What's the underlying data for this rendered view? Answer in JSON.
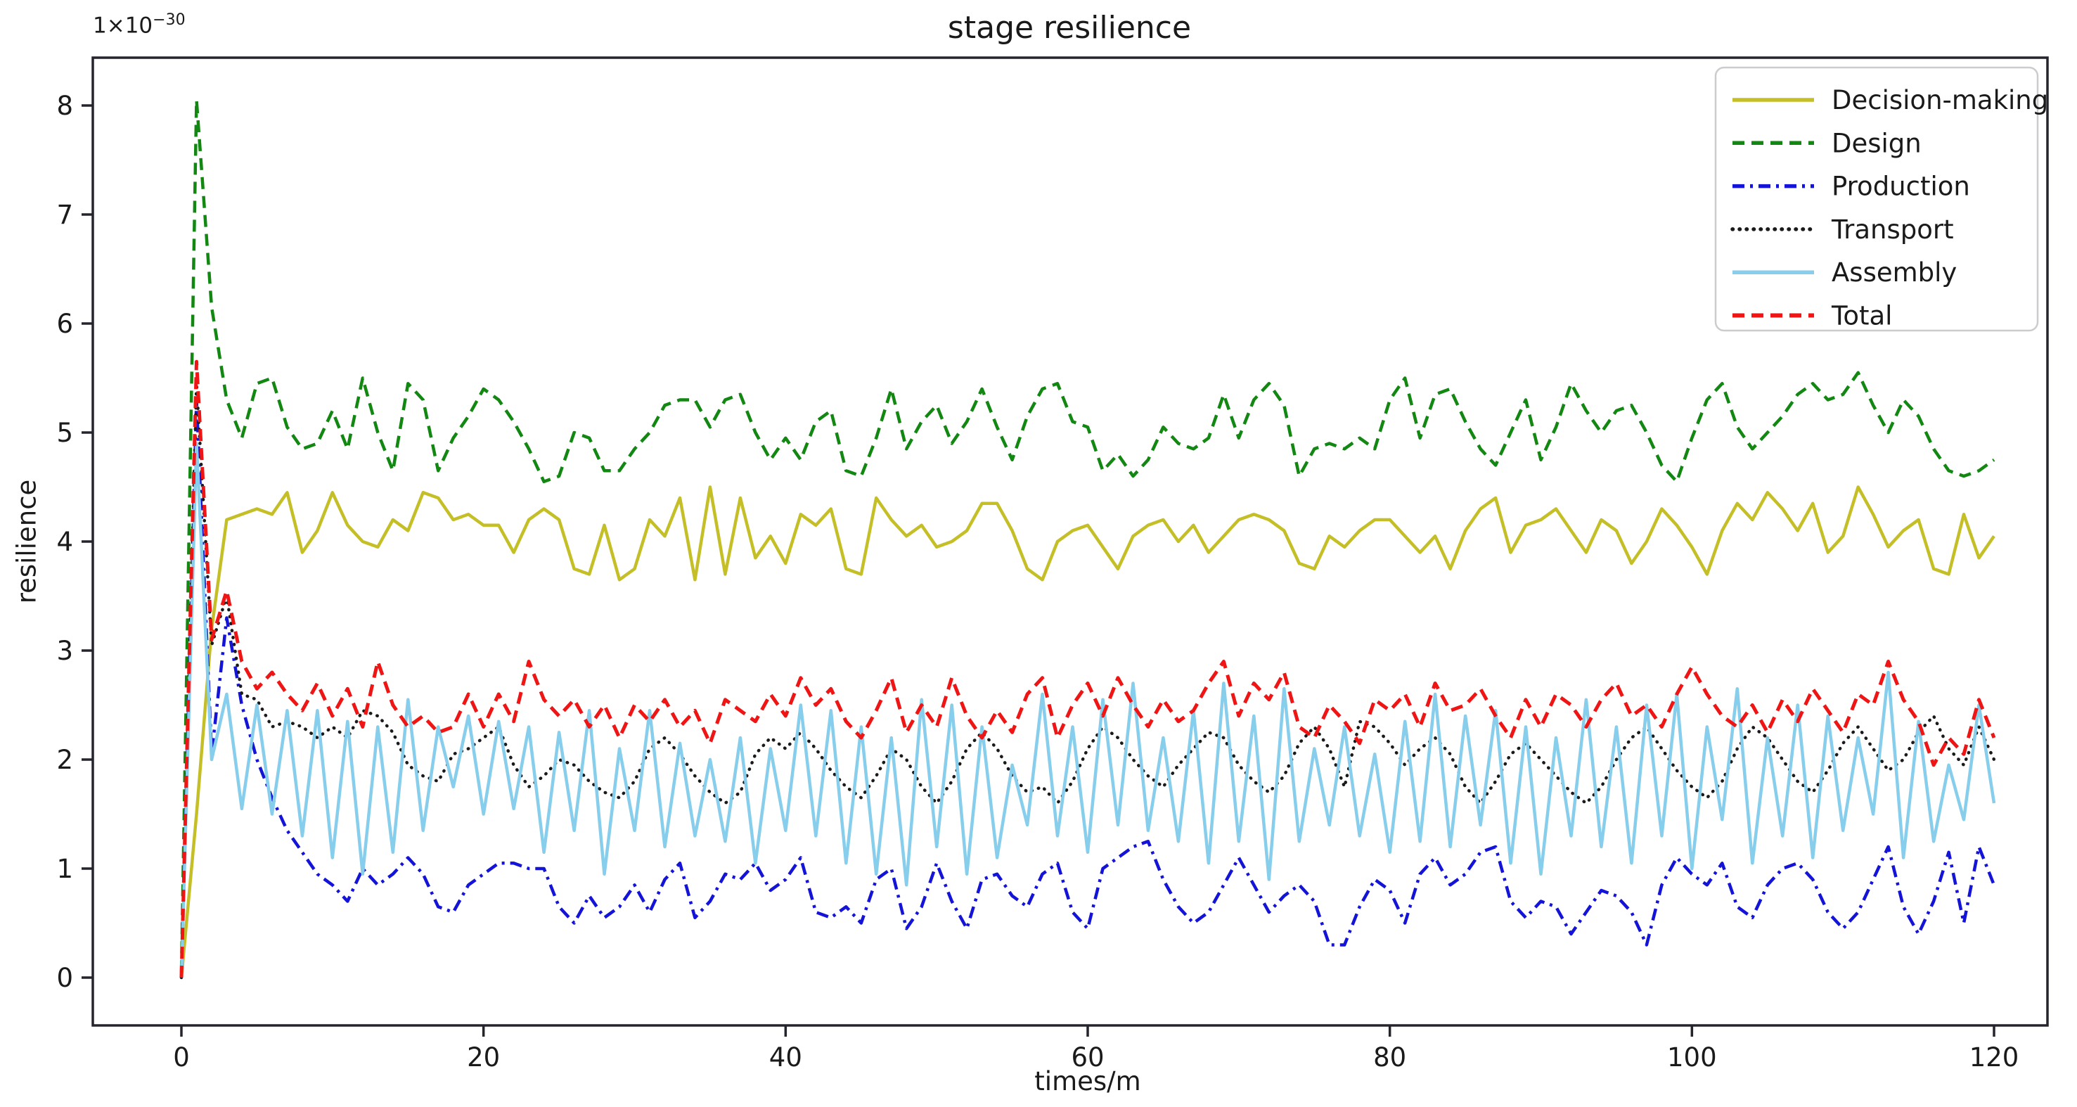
{
  "figure": {
    "title": "stage resilience",
    "offset_base": "1×10",
    "offset_exponent": "−30",
    "offset_text": "1×10⁻³⁰"
  },
  "axes": {
    "xlabel": "times/m",
    "ylabel": "resilience",
    "xticks": [
      0,
      20,
      40,
      60,
      80,
      100,
      120
    ],
    "yticks": [
      0,
      1,
      2,
      3,
      4,
      5,
      6,
      7,
      8
    ],
    "xlim": [
      -5.9,
      123.4
    ],
    "ylim": [
      -0.47,
      8.4
    ]
  },
  "colors": {
    "axis": "#24242c",
    "text": "#1a1a1a",
    "background": "#ffffff",
    "legend_border": "#cccccc",
    "decision_making": "#c5bf27",
    "design": "#128712",
    "production": "#1414d8",
    "transport": "#1a1a1a",
    "assembly": "#87ceec",
    "total": "#ef1515"
  },
  "legend": {
    "position": "upper right",
    "labels": [
      "Decision-making",
      "Design",
      "Production",
      "Transport",
      "Assembly",
      "Total"
    ]
  },
  "chart_data": {
    "type": "line",
    "title": "stage resilience",
    "xlabel": "times/m",
    "ylabel": "resilience",
    "y_scale_factor_text": "1×10⁻³⁰",
    "grid": false,
    "legend_position": "upper right",
    "xlim": [
      -5.9,
      123.4
    ],
    "ylim": [
      -0.47,
      8.4
    ],
    "x": [
      0,
      1,
      2,
      3,
      4,
      5,
      6,
      7,
      8,
      9,
      10,
      11,
      12,
      13,
      14,
      15,
      16,
      17,
      18,
      19,
      20,
      21,
      22,
      23,
      24,
      25,
      26,
      27,
      28,
      29,
      30,
      31,
      32,
      33,
      34,
      35,
      36,
      37,
      38,
      39,
      40,
      41,
      42,
      43,
      44,
      45,
      46,
      47,
      48,
      49,
      50,
      51,
      52,
      53,
      54,
      55,
      56,
      57,
      58,
      59,
      60,
      61,
      62,
      63,
      64,
      65,
      66,
      67,
      68,
      69,
      70,
      71,
      72,
      73,
      74,
      75,
      76,
      77,
      78,
      79,
      80,
      81,
      82,
      83,
      84,
      85,
      86,
      87,
      88,
      89,
      90,
      91,
      92,
      93,
      94,
      95,
      96,
      97,
      98,
      99,
      100,
      101,
      102,
      103,
      104,
      105,
      106,
      107,
      108,
      109,
      110,
      111,
      112,
      113,
      114,
      115,
      116,
      117,
      118,
      119,
      120
    ],
    "series": [
      {
        "name": "Decision-making",
        "color": "#c5bf27",
        "style": "solid",
        "linewidth": 4.5,
        "values": [
          0.0,
          1.5,
          3.2,
          4.2,
          4.25,
          4.3,
          4.25,
          4.45,
          3.9,
          4.1,
          4.45,
          4.15,
          4.0,
          3.95,
          4.2,
          4.1,
          4.45,
          4.4,
          4.2,
          4.25,
          4.15,
          4.15,
          3.9,
          4.2,
          4.3,
          4.2,
          3.75,
          3.7,
          4.15,
          3.65,
          3.75,
          4.2,
          4.05,
          4.4,
          3.65,
          4.5,
          3.7,
          4.4,
          3.85,
          4.05,
          3.8,
          4.25,
          4.15,
          4.3,
          3.75,
          3.7,
          4.4,
          4.2,
          4.05,
          4.15,
          3.95,
          4.0,
          4.1,
          4.35,
          4.35,
          4.1,
          3.75,
          3.65,
          4.0,
          4.1,
          4.15,
          3.95,
          3.75,
          4.05,
          4.15,
          4.2,
          4.0,
          4.15,
          3.9,
          4.05,
          4.2,
          4.25,
          4.2,
          4.1,
          3.8,
          3.75,
          4.05,
          3.95,
          4.1,
          4.2,
          4.2,
          4.05,
          3.9,
          4.05,
          3.75,
          4.1,
          4.3,
          4.4,
          3.9,
          4.15,
          4.2,
          4.3,
          4.1,
          3.9,
          4.2,
          4.1,
          3.8,
          4.0,
          4.3,
          4.15,
          3.95,
          3.7,
          4.1,
          4.35,
          4.2,
          4.45,
          4.3,
          4.1,
          4.35,
          3.9,
          4.05,
          4.5,
          4.25,
          3.95,
          4.1,
          4.2,
          3.75,
          3.7,
          4.25,
          3.85,
          4.05
        ]
      },
      {
        "name": "Design",
        "color": "#128712",
        "style": "dashed",
        "linewidth": 4.5,
        "values": [
          0.05,
          8.05,
          6.15,
          5.3,
          4.95,
          5.45,
          5.5,
          5.05,
          4.85,
          4.9,
          5.2,
          4.85,
          5.5,
          5.0,
          4.65,
          5.45,
          5.3,
          4.65,
          4.95,
          5.15,
          5.4,
          5.3,
          5.1,
          4.85,
          4.55,
          4.6,
          5.0,
          4.95,
          4.65,
          4.65,
          4.85,
          5.0,
          5.25,
          5.3,
          5.3,
          5.05,
          5.3,
          5.35,
          5.0,
          4.75,
          4.95,
          4.75,
          5.1,
          5.2,
          4.65,
          4.6,
          4.95,
          5.4,
          4.85,
          5.1,
          5.25,
          4.9,
          5.1,
          5.4,
          5.05,
          4.75,
          5.15,
          5.4,
          5.45,
          5.1,
          5.05,
          4.65,
          4.8,
          4.6,
          4.75,
          5.05,
          4.9,
          4.85,
          4.95,
          5.35,
          4.95,
          5.3,
          5.45,
          5.25,
          4.6,
          4.85,
          4.9,
          4.85,
          4.95,
          4.85,
          5.3,
          5.5,
          4.95,
          5.35,
          5.4,
          5.1,
          4.85,
          4.7,
          5.0,
          5.3,
          4.75,
          5.05,
          5.45,
          5.2,
          5.0,
          5.2,
          5.25,
          5.0,
          4.7,
          4.55,
          4.95,
          5.3,
          5.45,
          5.05,
          4.85,
          5.0,
          5.15,
          5.35,
          5.45,
          5.3,
          5.35,
          5.55,
          5.25,
          5.0,
          5.3,
          5.15,
          4.85,
          4.65,
          4.6,
          4.65,
          4.75
        ]
      },
      {
        "name": "Production",
        "color": "#1414d8",
        "style": "dashdot",
        "linewidth": 4.5,
        "values": [
          0.0,
          5.3,
          2.05,
          3.3,
          2.5,
          2.0,
          1.65,
          1.35,
          1.15,
          0.95,
          0.85,
          0.7,
          1.0,
          0.85,
          0.95,
          1.1,
          0.95,
          0.65,
          0.6,
          0.85,
          0.95,
          1.05,
          1.05,
          1.0,
          1.0,
          0.65,
          0.5,
          0.75,
          0.55,
          0.65,
          0.85,
          0.6,
          0.9,
          1.05,
          0.55,
          0.7,
          0.95,
          0.9,
          1.05,
          0.8,
          0.9,
          1.1,
          0.6,
          0.55,
          0.65,
          0.5,
          0.9,
          1.0,
          0.45,
          0.65,
          1.05,
          0.7,
          0.45,
          0.9,
          0.95,
          0.75,
          0.65,
          0.95,
          1.05,
          0.6,
          0.45,
          1.0,
          1.1,
          1.2,
          1.25,
          0.9,
          0.65,
          0.5,
          0.6,
          0.85,
          1.1,
          0.85,
          0.6,
          0.75,
          0.85,
          0.7,
          0.3,
          0.3,
          0.65,
          0.9,
          0.8,
          0.5,
          0.95,
          1.1,
          0.85,
          0.95,
          1.15,
          1.2,
          0.7,
          0.55,
          0.7,
          0.65,
          0.4,
          0.6,
          0.8,
          0.75,
          0.6,
          0.3,
          0.85,
          1.1,
          0.95,
          0.85,
          1.05,
          0.65,
          0.55,
          0.85,
          1.0,
          1.05,
          0.9,
          0.6,
          0.45,
          0.6,
          0.9,
          1.2,
          0.65,
          0.4,
          0.7,
          1.15,
          0.5,
          1.2,
          0.85
        ]
      },
      {
        "name": "Transport",
        "color": "#1a1a1a",
        "style": "dotted",
        "linewidth": 4.5,
        "values": [
          0.0,
          5.45,
          3.05,
          3.5,
          2.6,
          2.55,
          2.3,
          2.35,
          2.3,
          2.2,
          2.3,
          2.2,
          2.45,
          2.4,
          2.25,
          1.95,
          1.85,
          1.8,
          2.05,
          2.1,
          2.2,
          2.3,
          1.95,
          1.75,
          1.85,
          2.0,
          1.95,
          1.8,
          1.7,
          1.65,
          1.8,
          2.1,
          2.2,
          2.05,
          1.85,
          1.7,
          1.6,
          1.7,
          2.05,
          2.2,
          2.1,
          2.25,
          2.1,
          1.9,
          1.75,
          1.65,
          1.85,
          2.1,
          2.0,
          1.75,
          1.6,
          1.8,
          2.1,
          2.25,
          2.1,
          1.85,
          1.7,
          1.75,
          1.6,
          1.8,
          2.1,
          2.3,
          2.2,
          2.0,
          1.85,
          1.75,
          1.95,
          2.1,
          2.25,
          2.2,
          1.95,
          1.8,
          1.7,
          1.85,
          2.15,
          2.3,
          2.1,
          1.75,
          2.35,
          2.3,
          2.15,
          1.95,
          2.1,
          2.2,
          2.05,
          1.75,
          1.6,
          1.8,
          2.05,
          2.15,
          2.0,
          1.85,
          1.7,
          1.6,
          1.75,
          2.0,
          2.2,
          2.3,
          2.1,
          1.9,
          1.75,
          1.65,
          1.8,
          2.1,
          2.3,
          2.2,
          2.0,
          1.8,
          1.7,
          1.9,
          2.15,
          2.3,
          2.1,
          1.9,
          2.0,
          2.25,
          2.4,
          2.1,
          1.95,
          2.3,
          2.0
        ]
      },
      {
        "name": "Assembly",
        "color": "#87ceec",
        "style": "solid",
        "linewidth": 4.5,
        "values": [
          0.0,
          4.9,
          2.0,
          2.6,
          1.55,
          2.5,
          1.5,
          2.45,
          1.3,
          2.45,
          1.1,
          2.35,
          0.95,
          2.3,
          1.15,
          2.55,
          1.35,
          2.3,
          1.75,
          2.4,
          1.5,
          2.35,
          1.55,
          2.3,
          1.15,
          2.25,
          1.35,
          2.45,
          0.95,
          2.1,
          1.35,
          2.45,
          1.2,
          2.15,
          1.3,
          2.0,
          1.25,
          2.2,
          1.05,
          2.1,
          1.35,
          2.5,
          1.3,
          2.45,
          1.05,
          2.3,
          0.95,
          2.2,
          0.85,
          2.55,
          1.2,
          2.5,
          0.95,
          2.3,
          1.1,
          1.95,
          1.4,
          2.6,
          1.3,
          2.3,
          1.15,
          2.55,
          1.4,
          2.7,
          1.35,
          2.2,
          1.25,
          2.45,
          1.05,
          2.7,
          1.25,
          2.4,
          0.9,
          2.65,
          1.25,
          2.1,
          1.4,
          2.3,
          1.3,
          2.05,
          1.15,
          2.35,
          1.25,
          2.6,
          1.2,
          2.4,
          1.4,
          2.45,
          1.05,
          2.3,
          0.95,
          2.2,
          1.3,
          2.55,
          1.2,
          2.3,
          1.05,
          2.5,
          1.3,
          2.6,
          1.0,
          2.3,
          1.45,
          2.65,
          1.05,
          2.2,
          1.3,
          2.5,
          1.1,
          2.4,
          1.35,
          2.2,
          1.5,
          2.8,
          1.1,
          2.35,
          1.25,
          1.95,
          1.45,
          2.5,
          1.6
        ]
      },
      {
        "name": "Total",
        "color": "#ef1515",
        "style": "dashed",
        "linewidth": 5,
        "values": [
          0.0,
          5.65,
          3.1,
          3.55,
          2.9,
          2.65,
          2.8,
          2.6,
          2.45,
          2.7,
          2.4,
          2.65,
          2.3,
          2.9,
          2.5,
          2.3,
          2.4,
          2.25,
          2.3,
          2.6,
          2.3,
          2.6,
          2.35,
          2.9,
          2.55,
          2.4,
          2.55,
          2.3,
          2.5,
          2.2,
          2.5,
          2.35,
          2.55,
          2.3,
          2.45,
          2.15,
          2.55,
          2.45,
          2.35,
          2.6,
          2.4,
          2.75,
          2.5,
          2.65,
          2.35,
          2.2,
          2.45,
          2.75,
          2.25,
          2.5,
          2.3,
          2.75,
          2.4,
          2.2,
          2.45,
          2.25,
          2.6,
          2.75,
          2.2,
          2.5,
          2.7,
          2.4,
          2.75,
          2.5,
          2.3,
          2.55,
          2.35,
          2.45,
          2.7,
          2.9,
          2.4,
          2.7,
          2.55,
          2.8,
          2.3,
          2.2,
          2.5,
          2.35,
          2.15,
          2.55,
          2.45,
          2.6,
          2.3,
          2.7,
          2.45,
          2.5,
          2.65,
          2.4,
          2.2,
          2.55,
          2.3,
          2.6,
          2.5,
          2.3,
          2.55,
          2.7,
          2.4,
          2.5,
          2.3,
          2.6,
          2.85,
          2.6,
          2.4,
          2.3,
          2.5,
          2.25,
          2.55,
          2.35,
          2.65,
          2.45,
          2.25,
          2.6,
          2.5,
          2.9,
          2.55,
          2.35,
          1.95,
          2.2,
          2.05,
          2.55,
          2.2
        ]
      }
    ]
  }
}
